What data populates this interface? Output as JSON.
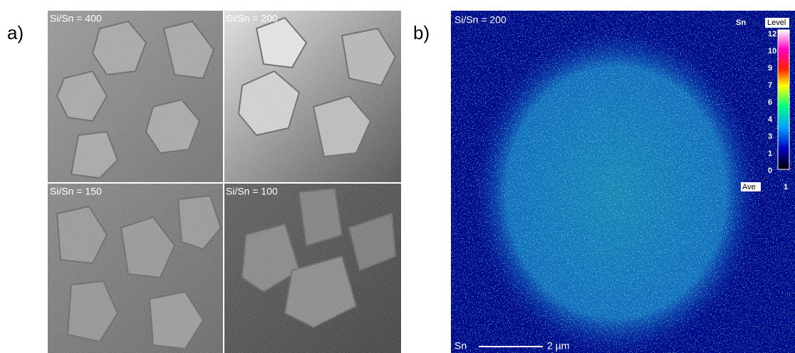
{
  "figure": {
    "panel_a": {
      "label": "a)",
      "images": [
        {
          "label": "Si/Sn = 400"
        },
        {
          "label": "Si/Sn = 200"
        },
        {
          "label": "Si/Sn = 150"
        },
        {
          "label": "Si/Sn = 100"
        }
      ]
    },
    "panel_b": {
      "label": "b)",
      "title": "Si/Sn = 200",
      "element": "Sn",
      "level_title": "Level",
      "levels": [
        "12",
        "10",
        "9",
        "7",
        "6",
        "4",
        "3",
        "1",
        "0"
      ],
      "ave_label": "Ave",
      "ave_value": "1",
      "scale_element": "Sn",
      "scale_bar": "2 µm"
    }
  }
}
